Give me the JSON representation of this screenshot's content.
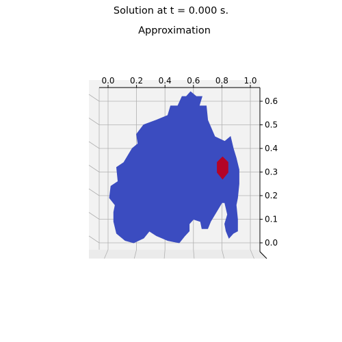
{
  "figure": {
    "suptitle": "Solution at t = 0.000 s.",
    "title": "Approximation"
  },
  "chart_data": {
    "type": "surface-3d",
    "title": "Approximation",
    "view": "top-down",
    "x_ticks": [
      "0.0",
      "0.2",
      "0.4",
      "0.6",
      "0.8",
      "1.0"
    ],
    "y_ticks": [
      "0.0",
      "0.1",
      "0.2",
      "0.3",
      "0.4",
      "0.5",
      "0.6"
    ],
    "xlim": [
      0.0,
      1.0
    ],
    "ylim": [
      0.0,
      0.6
    ],
    "colormap": "coolwarm",
    "domain_color": "#3b4cc0",
    "hotspot_color": "#b40426",
    "pane_color": "#f2f2f2",
    "grid_color": "#b0b0b0",
    "domain_outline": [
      [
        0.55,
        0.62
      ],
      [
        0.58,
        0.64
      ],
      [
        0.62,
        0.62
      ],
      [
        0.66,
        0.62
      ],
      [
        0.64,
        0.58
      ],
      [
        0.69,
        0.58
      ],
      [
        0.7,
        0.52
      ],
      [
        0.75,
        0.45
      ],
      [
        0.82,
        0.43
      ],
      [
        0.86,
        0.45
      ],
      [
        0.88,
        0.4
      ],
      [
        0.9,
        0.36
      ],
      [
        0.92,
        0.31
      ],
      [
        0.92,
        0.25
      ],
      [
        0.91,
        0.19
      ],
      [
        0.9,
        0.16
      ],
      [
        0.91,
        0.1
      ],
      [
        0.91,
        0.05
      ],
      [
        0.88,
        0.04
      ],
      [
        0.85,
        0.02
      ],
      [
        0.83,
        0.05
      ],
      [
        0.82,
        0.08
      ],
      [
        0.84,
        0.12
      ],
      [
        0.82,
        0.17
      ],
      [
        0.8,
        0.17
      ],
      [
        0.76,
        0.13
      ],
      [
        0.72,
        0.09
      ],
      [
        0.7,
        0.06
      ],
      [
        0.66,
        0.06
      ],
      [
        0.65,
        0.09
      ],
      [
        0.6,
        0.1
      ],
      [
        0.57,
        0.08
      ],
      [
        0.57,
        0.05
      ],
      [
        0.54,
        0.03
      ],
      [
        0.5,
        0.0
      ],
      [
        0.42,
        0.01
      ],
      [
        0.34,
        0.03
      ],
      [
        0.29,
        0.05
      ],
      [
        0.25,
        0.02
      ],
      [
        0.18,
        0.0
      ],
      [
        0.12,
        0.01
      ],
      [
        0.06,
        0.04
      ],
      [
        0.04,
        0.09
      ],
      [
        0.04,
        0.13
      ],
      [
        0.05,
        0.16
      ],
      [
        0.01,
        0.19
      ],
      [
        0.02,
        0.24
      ],
      [
        0.07,
        0.26
      ],
      [
        0.06,
        0.32
      ],
      [
        0.11,
        0.34
      ],
      [
        0.17,
        0.4
      ],
      [
        0.21,
        0.42
      ],
      [
        0.2,
        0.46
      ],
      [
        0.25,
        0.5
      ],
      [
        0.34,
        0.52
      ],
      [
        0.42,
        0.54
      ],
      [
        0.44,
        0.58
      ],
      [
        0.49,
        0.58
      ],
      [
        0.52,
        0.62
      ]
    ],
    "hotspot_outline": [
      [
        0.805,
        0.366
      ],
      [
        0.845,
        0.342
      ],
      [
        0.845,
        0.298
      ],
      [
        0.805,
        0.268
      ],
      [
        0.765,
        0.298
      ],
      [
        0.765,
        0.342
      ]
    ]
  }
}
